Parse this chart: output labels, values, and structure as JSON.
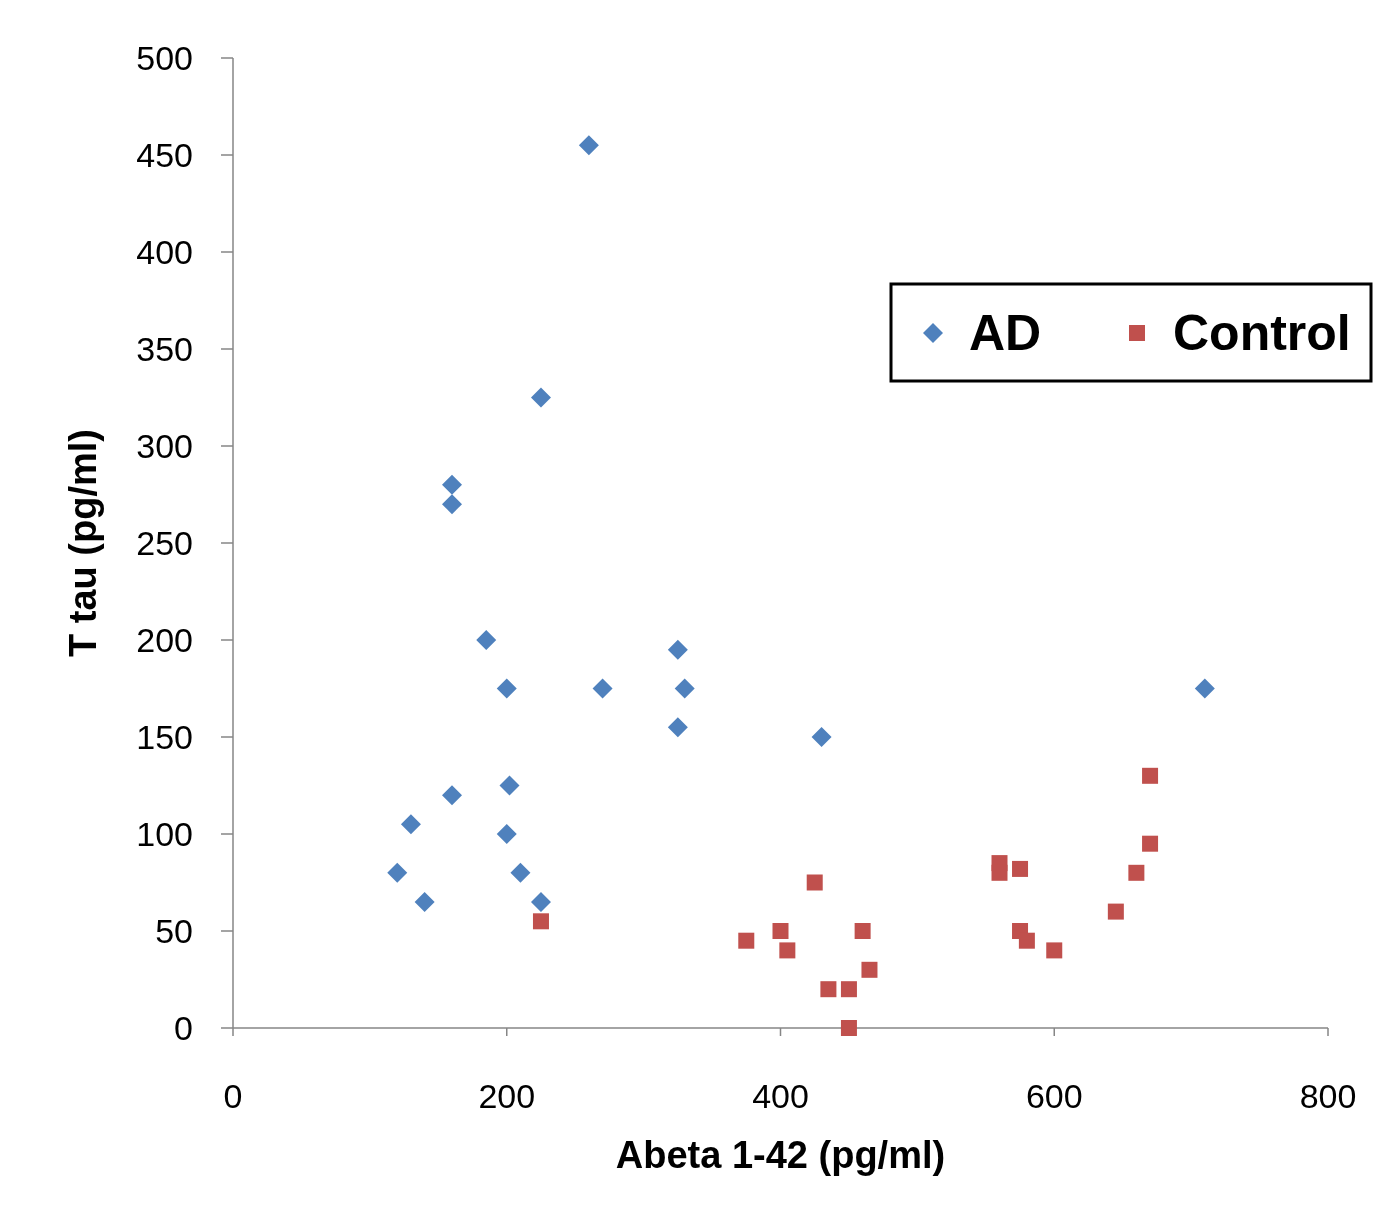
{
  "chart_data": {
    "type": "scatter",
    "xlabel": "Abeta 1-42 (pg/ml)",
    "ylabel": "T tau (pg/ml)",
    "xlim": [
      0,
      800
    ],
    "xticks": [
      0,
      200,
      400,
      600,
      800
    ],
    "ylim": [
      0,
      500
    ],
    "yticks": [
      0,
      50,
      100,
      150,
      200,
      250,
      300,
      350,
      400,
      450,
      500
    ],
    "grid": false,
    "legend": "top right",
    "series": [
      {
        "name": "AD",
        "color": "#4f81bd",
        "marker": "diamond",
        "x": [
          120,
          130,
          140,
          160,
          160,
          160,
          185,
          200,
          200,
          202,
          210,
          225,
          225,
          260,
          270,
          325,
          325,
          330,
          430,
          710
        ],
        "values": [
          80,
          105,
          65,
          280,
          270,
          120,
          200,
          175,
          100,
          125,
          80,
          325,
          65,
          455,
          175,
          195,
          155,
          175,
          150,
          175
        ]
      },
      {
        "name": "Control",
        "color": "#c0504d",
        "marker": "square",
        "x": [
          225,
          375,
          400,
          405,
          425,
          435,
          450,
          450,
          460,
          465,
          560,
          560,
          575,
          575,
          580,
          600,
          645,
          660,
          670,
          670
        ],
        "values": [
          55,
          45,
          50,
          40,
          75,
          20,
          20,
          0,
          50,
          30,
          85,
          80,
          82,
          50,
          45,
          40,
          60,
          80,
          95,
          130
        ]
      }
    ]
  }
}
